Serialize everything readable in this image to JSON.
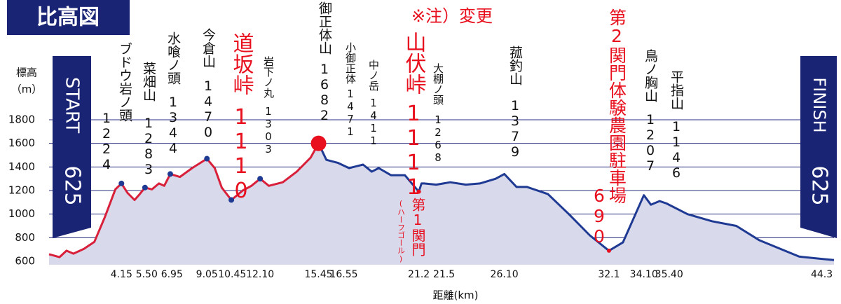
{
  "chart_data": {
    "type": "area",
    "title": "比高図",
    "y_label": "標高",
    "y_unit": "（m）",
    "x_label": "距離(km)",
    "note": "※注）変更",
    "start": {
      "label": "START",
      "elevation": 625
    },
    "finish": {
      "label": "FINISH",
      "elevation": 625
    },
    "checkpoint": {
      "label": "第1関門",
      "sub": "(ハーフゴール)"
    },
    "xlim": [
      0,
      45
    ],
    "ylim": [
      600,
      1800
    ],
    "yticks": [
      600,
      800,
      1000,
      1200,
      1400,
      1600,
      1800
    ],
    "xticks": [
      4.15,
      {
        "value": 5.5,
        "label": "5.50"
      },
      6.95,
      9.05,
      10.45,
      {
        "value": 12.1,
        "label": "12.10"
      },
      15.45,
      16.55,
      21.2,
      21.5,
      {
        "value": 26.1,
        "label": "26.10"
      },
      32.1,
      {
        "value": 34.1,
        "label": "34.10"
      },
      {
        "value": 35.4,
        "label": "35.40"
      },
      44.3
    ],
    "grid": true,
    "area_color": "#d9d9ec",
    "x": [
      0,
      0.6,
      1.0,
      1.4,
      2.0,
      2.6,
      3.2,
      3.8,
      4.15,
      4.5,
      4.9,
      5.2,
      5.5,
      5.9,
      6.3,
      6.6,
      6.95,
      7.5,
      8.2,
      9.05,
      9.5,
      9.9,
      10.45,
      11.1,
      11.6,
      12.1,
      12.6,
      13.4,
      14.2,
      15.0,
      15.45,
      15.9,
      16.55,
      17.2,
      18.0,
      18.5,
      18.9,
      19.6,
      20.4,
      21.2,
      21.35,
      21.5,
      22.2,
      23.0,
      23.9,
      24.7,
      25.6,
      26.1,
      26.8,
      27.4,
      28.6,
      29.8,
      31.0,
      32.1,
      32.9,
      34.1,
      34.5,
      35.0,
      35.4,
      36.6,
      38.0,
      39.4,
      40.7,
      43.0,
      44.3,
      45.0
    ],
    "series": [
      {
        "color": "#d8203a",
        "values": [
          660,
          635,
          690,
          665,
          705,
          765,
          975,
          1210,
          1260,
          1180,
          1120,
          1170,
          1225,
          1210,
          1260,
          1240,
          1340,
          1315,
          1390,
          1470,
          1390,
          1225,
          1120,
          1200,
          1240,
          1300,
          1240,
          1270,
          1360,
          1480,
          1600,
          null,
          null,
          null,
          null,
          null,
          null,
          null,
          null,
          null,
          null,
          null,
          null,
          null,
          null,
          null,
          null,
          null,
          null,
          null,
          null,
          null,
          null,
          null,
          null,
          null,
          null,
          null,
          null,
          null,
          null,
          null,
          null,
          null,
          null,
          null
        ]
      },
      {
        "color": "#1f3a93",
        "values": [
          null,
          null,
          null,
          null,
          null,
          null,
          null,
          null,
          null,
          null,
          null,
          null,
          null,
          null,
          null,
          null,
          null,
          null,
          null,
          null,
          null,
          null,
          null,
          null,
          null,
          null,
          null,
          null,
          null,
          null,
          1600,
          1460,
          1435,
          1390,
          1420,
          1360,
          1390,
          1330,
          1330,
          1190,
          1260,
          1260,
          1250,
          1270,
          1250,
          1260,
          1300,
          1340,
          1230,
          1230,
          1170,
          1000,
          820,
          690,
          760,
          1160,
          1080,
          1110,
          1090,
          1000,
          940,
          900,
          780,
          640,
          620,
          610
        ]
      }
    ],
    "points": [
      {
        "color": "#1f3a93",
        "radius": 4,
        "x": [
          4.15,
          5.5,
          6.95,
          9.05,
          10.45,
          12.1
        ],
        "values": [
          1260,
          1225,
          1340,
          1470,
          1120,
          1300
        ]
      },
      {
        "color": "#e8101e",
        "radius": 3,
        "x": [
          21.2,
          32.1
        ],
        "values": [
          1190,
          690
        ]
      },
      {
        "color": "#e8101e",
        "radius": 11,
        "x": [
          15.45
        ],
        "values": [
          1600
        ]
      }
    ],
    "annotations": [
      {
        "name": "ブドウ岩ノ頭",
        "elevation": 1224,
        "color": "#111111"
      },
      {
        "name": "菜畑山",
        "elevation": 1283,
        "color": "#111111"
      },
      {
        "name": "水喰ノ頭",
        "elevation": 1344,
        "color": "#111111"
      },
      {
        "name": "今倉山",
        "elevation": 1470,
        "color": "#111111"
      },
      {
        "name": "道坂峠",
        "elevation": 1110,
        "color": "#e8101e"
      },
      {
        "name": "岩下ノ丸",
        "elevation": 1303,
        "color": "#111111"
      },
      {
        "name": "御正体山",
        "elevation": 1682,
        "color": "#111111"
      },
      {
        "name": "小御正体",
        "elevation": 1471,
        "color": "#111111"
      },
      {
        "name": "中ノ岳",
        "elevation": 1411,
        "color": "#111111"
      },
      {
        "name": "山伏峠",
        "elevation": 1111,
        "color": "#e8101e"
      },
      {
        "name": "大棚ノ頭",
        "elevation": 1268,
        "color": "#111111"
      },
      {
        "name": "菰釣山",
        "elevation": 1379,
        "color": "#111111"
      },
      {
        "name": "第2関門体験農園駐車場",
        "elevation": 690,
        "color": "#e8101e"
      },
      {
        "name": "鳥ノ胸山",
        "elevation": 1207,
        "color": "#111111"
      },
      {
        "name": "平指山",
        "elevation": 1146,
        "color": "#111111"
      }
    ]
  }
}
